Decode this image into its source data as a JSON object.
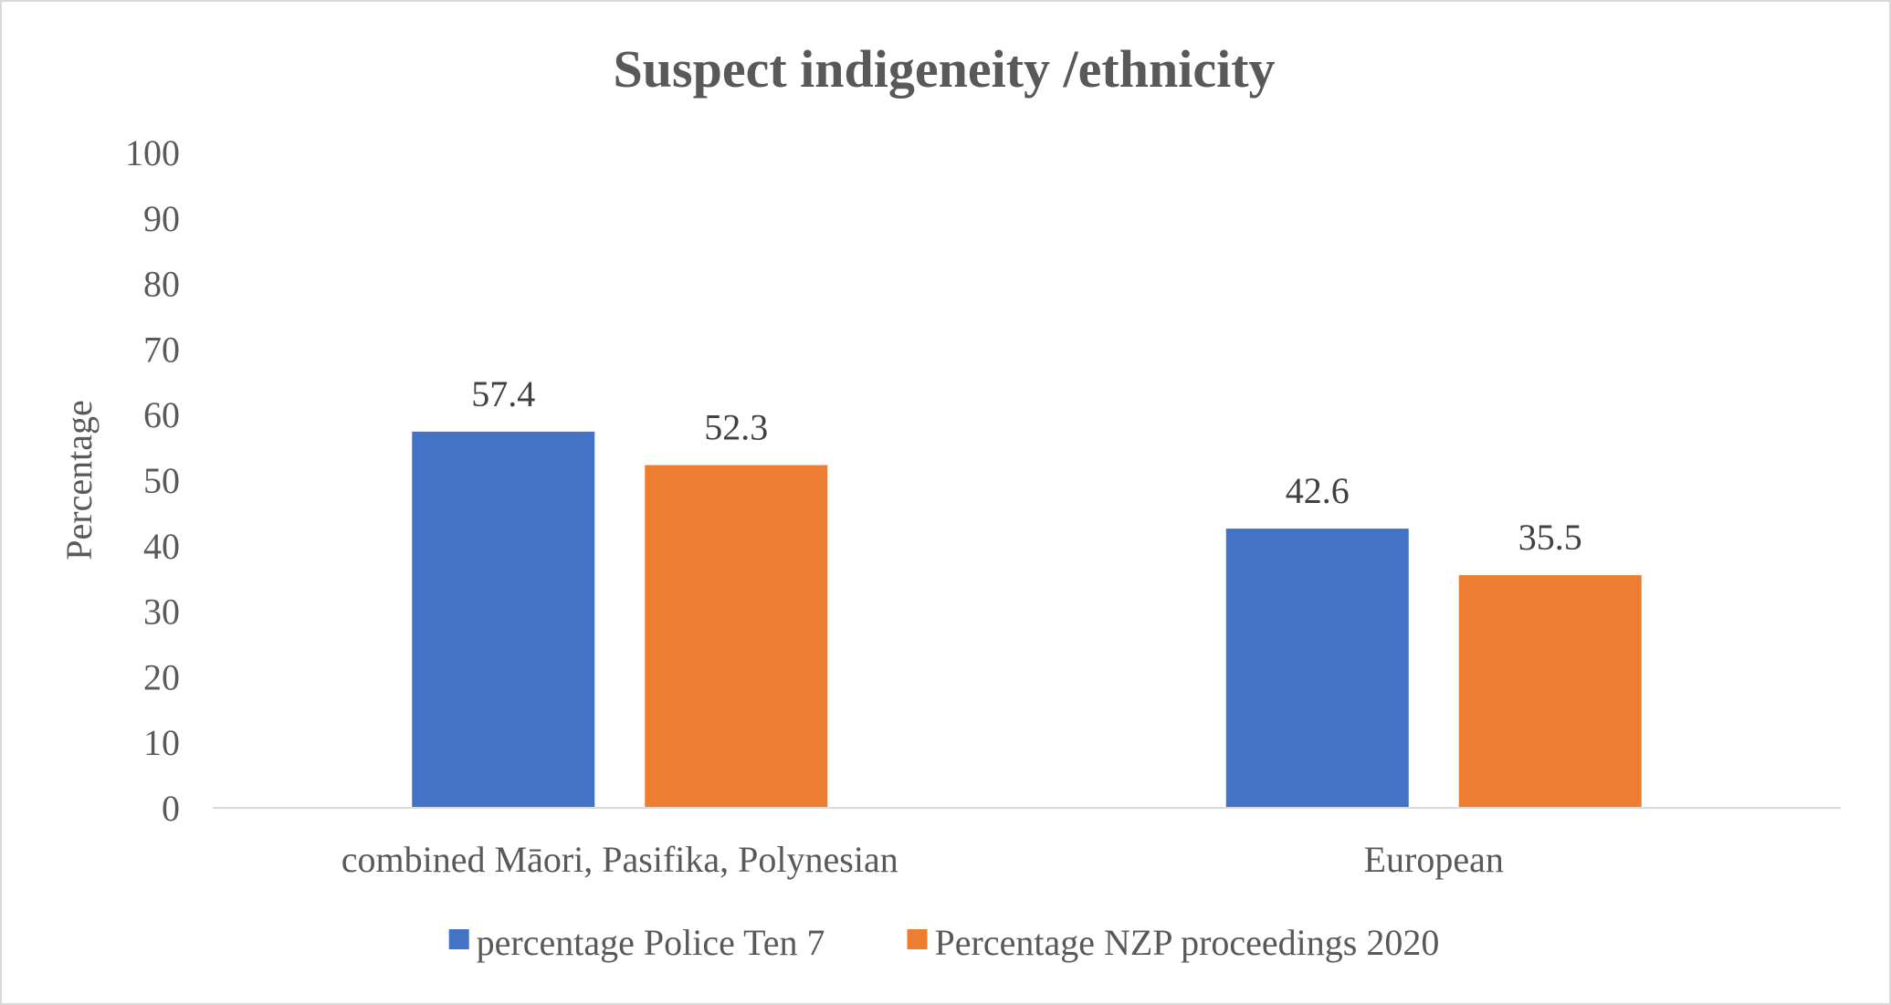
{
  "chart_data": {
    "type": "bar",
    "title": "Suspect indigeneity /ethnicity",
    "xlabel": "",
    "ylabel": "Percentage",
    "ylim": [
      0,
      100
    ],
    "yticks": [
      "0",
      "10",
      "20",
      "30",
      "40",
      "50",
      "60",
      "70",
      "80",
      "90",
      "100"
    ],
    "grid": false,
    "legend_position": "bottom",
    "categories": [
      "combined Māori, Pasifika, Polynesian",
      "European"
    ],
    "series": [
      {
        "name": "percentage Police Ten 7",
        "color": "#4472C4",
        "values": [
          57.4,
          42.6
        ],
        "labels": [
          "57.4",
          "42.6"
        ]
      },
      {
        "name": "Percentage NZP proceedings 2020",
        "color": "#ED7D31",
        "values": [
          52.3,
          35.5
        ],
        "labels": [
          "52.3",
          "35.5"
        ]
      }
    ]
  }
}
